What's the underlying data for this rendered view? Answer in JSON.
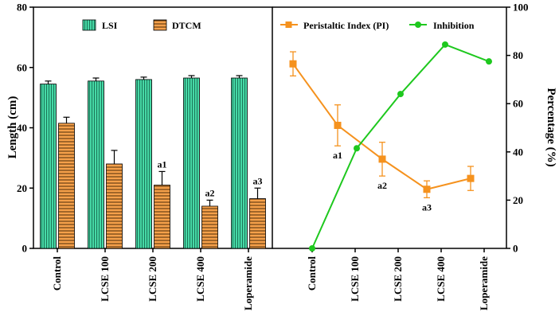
{
  "chart_data": [
    {
      "type": "bar",
      "categories": [
        "Control",
        "LCSE 100",
        "LCSE 200",
        "LCSE 400",
        "Loperamide"
      ],
      "ylabel": "Length (cm)",
      "ylim": [
        0,
        80
      ],
      "yticks": [
        0,
        20,
        40,
        60,
        80
      ],
      "series": [
        {
          "name": "LSI",
          "color": "#46d9a6",
          "pattern": "vertical-lines",
          "values": [
            54.5,
            55.5,
            56.0,
            56.5,
            56.5
          ],
          "errors": [
            1.0,
            1.0,
            0.8,
            0.8,
            0.8
          ]
        },
        {
          "name": "DTCM",
          "color": "#f5a04a",
          "pattern": "horizontal-lines",
          "values": [
            41.5,
            28.0,
            21.0,
            14.0,
            16.5
          ],
          "errors": [
            2.0,
            4.5,
            4.5,
            2.0,
            3.5
          ]
        }
      ],
      "annotations": [
        {
          "series": "DTCM",
          "category": "LCSE 200",
          "text": "a1"
        },
        {
          "series": "DTCM",
          "category": "LCSE 400",
          "text": "a2"
        },
        {
          "series": "DTCM",
          "category": "Loperamide",
          "text": "a3"
        }
      ]
    },
    {
      "type": "line",
      "categories": [
        "Control",
        "LCSE 100",
        "LCSE 200",
        "LCSE 400",
        "Loperamide"
      ],
      "ylabel": "Percentage (%)",
      "ylim": [
        0,
        100
      ],
      "yticks": [
        0,
        20,
        40,
        60,
        80,
        100
      ],
      "series": [
        {
          "name": "Peristaltic Index (PI)",
          "color": "#f5921e",
          "marker": "square",
          "values": [
            76.5,
            51.0,
            37.0,
            24.5,
            29.0
          ],
          "errors": [
            5.0,
            8.5,
            7.0,
            3.5,
            5.0
          ]
        },
        {
          "name": "Inhibition",
          "color": "#1ec81e",
          "marker": "circle",
          "values": [
            0.0,
            41.5,
            64.0,
            84.5,
            77.5
          ]
        }
      ],
      "annotations": [
        {
          "series": "Peristaltic Index (PI)",
          "category": "LCSE 100",
          "text": "a1"
        },
        {
          "series": "Peristaltic Index (PI)",
          "category": "LCSE 200",
          "text": "a2"
        },
        {
          "series": "Peristaltic Index (PI)",
          "category": "LCSE 400",
          "text": "a3"
        }
      ]
    }
  ]
}
